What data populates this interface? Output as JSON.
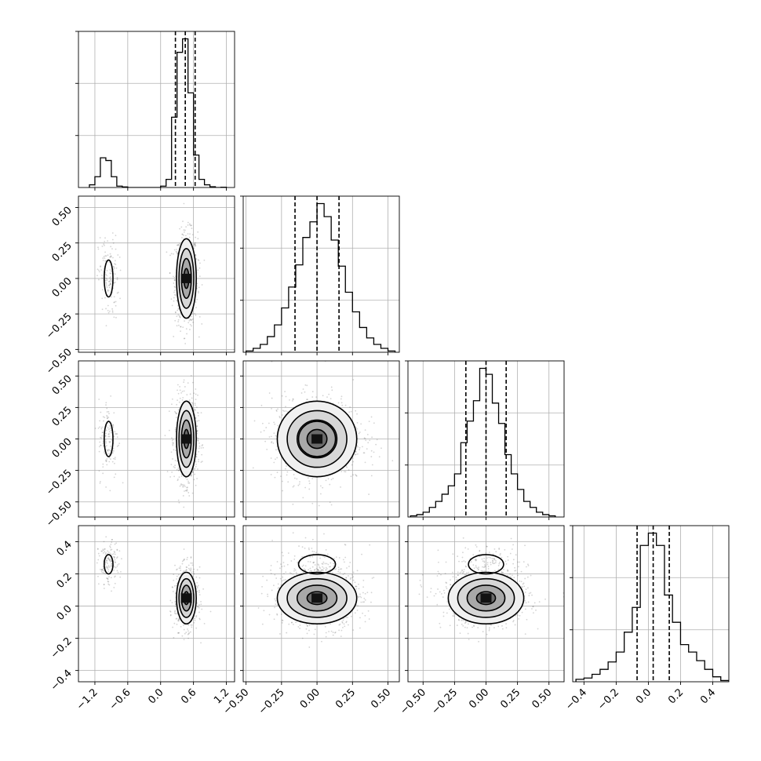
{
  "chart_data": {
    "type": "corner",
    "title": "",
    "parameters": [
      {
        "label": "",
        "range": [
          -1.5,
          1.35
        ],
        "ticks": [
          -1.2,
          -0.6,
          0.0,
          0.6,
          1.2
        ],
        "tick_labels": [
          "−1.2",
          "−0.6",
          "0.0",
          "0.6",
          "1.2"
        ],
        "quantiles": [
          0.27,
          0.45,
          0.63
        ],
        "hist_edges": [
          -1.3,
          -1.2,
          -1.1,
          -1.0,
          -0.9,
          -0.8,
          -0.7,
          -0.6,
          -0.5,
          -0.4,
          -0.3,
          -0.2,
          -0.1,
          0.0,
          0.1,
          0.2,
          0.3,
          0.4,
          0.5,
          0.6,
          0.7,
          0.8,
          0.9,
          1.0,
          1.1,
          1.2
        ],
        "hist_counts": [
          1,
          4,
          11,
          10,
          4,
          0.5,
          0.2,
          0,
          0,
          0,
          0,
          0,
          0,
          0.5,
          3,
          26,
          50,
          55,
          35,
          12,
          3,
          1,
          0.3,
          0,
          0.1
        ]
      },
      {
        "label": "",
        "range": [
          -0.52,
          0.58
        ],
        "ticks": [
          -0.5,
          -0.25,
          0.0,
          0.25,
          0.5
        ],
        "tick_labels": [
          "−0.50",
          "−0.25",
          "0.00",
          "0.25",
          "0.50"
        ],
        "quantiles": [
          -0.155,
          0.0,
          0.155
        ],
        "hist_edges": [
          -0.5,
          -0.45,
          -0.4,
          -0.35,
          -0.3,
          -0.25,
          -0.2,
          -0.15,
          -0.1,
          -0.05,
          0.0,
          0.05,
          0.1,
          0.15,
          0.2,
          0.25,
          0.3,
          0.35,
          0.4,
          0.45,
          0.5,
          0.55
        ],
        "hist_counts": [
          1,
          3,
          6,
          12,
          21,
          34,
          50,
          67,
          88,
          100,
          114,
          104,
          86,
          66,
          46,
          31,
          19,
          11,
          6,
          3,
          1
        ]
      },
      {
        "label": "",
        "range": [
          -0.62,
          0.62
        ],
        "ticks": [
          -0.5,
          -0.25,
          0.0,
          0.25,
          0.5
        ],
        "tick_labels": [
          "−0.50",
          "−0.25",
          "0.00",
          "0.25",
          "0.50"
        ],
        "quantiles": [
          -0.16,
          0.0,
          0.16
        ],
        "hist_edges": [
          -0.6,
          -0.55,
          -0.5,
          -0.45,
          -0.4,
          -0.35,
          -0.3,
          -0.25,
          -0.2,
          -0.15,
          -0.1,
          -0.05,
          0.0,
          0.05,
          0.1,
          0.15,
          0.2,
          0.25,
          0.3,
          0.35,
          0.4,
          0.45,
          0.5,
          0.55
        ],
        "hist_counts": [
          1,
          2,
          4,
          8,
          13,
          19,
          26,
          36,
          62,
          80,
          97,
          124,
          119,
          95,
          78,
          52,
          36,
          23,
          13,
          8,
          4,
          2,
          1
        ]
      },
      {
        "label": "",
        "range": [
          -0.47,
          0.5
        ],
        "ticks": [
          -0.4,
          -0.2,
          0.0,
          0.2,
          0.4
        ],
        "tick_labels": [
          "−0.4",
          "−0.2",
          "0.0",
          "0.2",
          "0.4"
        ],
        "quantiles": [
          -0.07,
          0.03,
          0.13
        ],
        "hist_edges": [
          -0.45,
          -0.4,
          -0.35,
          -0.3,
          -0.25,
          -0.2,
          -0.15,
          -0.1,
          -0.05,
          0.0,
          0.05,
          0.1,
          0.15,
          0.2,
          0.25,
          0.3,
          0.35,
          0.4,
          0.45,
          0.5
        ],
        "hist_counts": [
          2,
          3,
          6,
          10,
          16,
          24,
          40,
          60,
          110,
          120,
          110,
          70,
          48,
          30,
          24,
          17,
          10,
          4,
          1
        ]
      }
    ],
    "components": [
      {
        "mean": [
          0.47,
          0.0,
          0.0,
          0.05
        ],
        "sd": [
          0.09,
          0.14,
          0.15,
          0.08
        ],
        "weight": 0.85
      },
      {
        "mean": [
          -0.95,
          0.0,
          0.0,
          0.26
        ],
        "sd": [
          0.08,
          0.13,
          0.14,
          0.06
        ],
        "weight": 0.15
      }
    ],
    "grid": true,
    "legend": "none"
  }
}
